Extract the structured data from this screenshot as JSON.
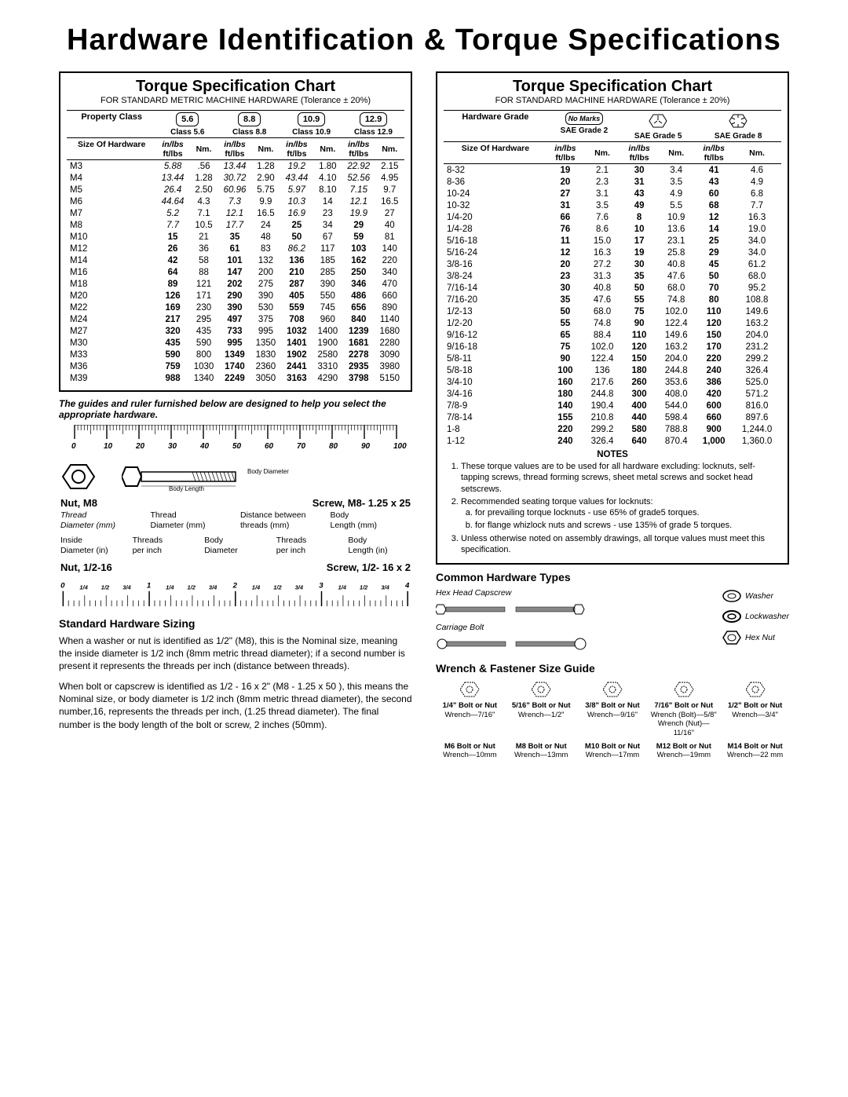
{
  "page_title": "Hardware Identification  &  Torque Specifications",
  "metric_chart": {
    "title": "Torque Specification Chart",
    "subtitle": "FOR STANDARD METRIC MACHINE HARDWARE (Tolerance ± 20%)",
    "prop_label": "Property Class",
    "classes": [
      "5.6",
      "8.8",
      "10.9",
      "12.9"
    ],
    "class_labels": [
      "Class 5.6",
      "Class 8.8",
      "Class 10.9",
      "Class 12.9"
    ],
    "size_label": "Size Of Hardware",
    "unit_top": "in/lbs",
    "unit_bot": "ft/lbs",
    "nm_label": "Nm.",
    "rows": [
      {
        "s": "M3",
        "v": [
          "5.88",
          ".56",
          "13.44",
          "1.28",
          "19.2",
          "1.80",
          "22.92",
          "2.15"
        ]
      },
      {
        "s": "M4",
        "v": [
          "13.44",
          "1.28",
          "30.72",
          "2.90",
          "43.44",
          "4.10",
          "52.56",
          "4.95"
        ]
      },
      {
        "s": "M5",
        "v": [
          "26.4",
          "2.50",
          "60.96",
          "5.75",
          "5.97",
          "8.10",
          "7.15",
          "9.7"
        ]
      },
      {
        "s": "M6",
        "v": [
          "44.64",
          "4.3",
          "7.3",
          "9.9",
          "10.3",
          "14",
          "12.1",
          "16.5"
        ]
      },
      {
        "s": "M7",
        "v": [
          "5.2",
          "7.1",
          "12.1",
          "16.5",
          "16.9",
          "23",
          "19.9",
          "27"
        ]
      },
      {
        "s": "M8",
        "v": [
          "7.7",
          "10.5",
          "17.7",
          "24",
          "25",
          "34",
          "29",
          "40"
        ]
      },
      {
        "s": "M10",
        "v": [
          "15",
          "21",
          "35",
          "48",
          "50",
          "67",
          "59",
          "81"
        ]
      },
      {
        "s": "M12",
        "v": [
          "26",
          "36",
          "61",
          "83",
          "86.2",
          "117",
          "103",
          "140"
        ]
      },
      {
        "s": "M14",
        "v": [
          "42",
          "58",
          "101",
          "132",
          "136",
          "185",
          "162",
          "220"
        ]
      },
      {
        "s": "M16",
        "v": [
          "64",
          "88",
          "147",
          "200",
          "210",
          "285",
          "250",
          "340"
        ]
      },
      {
        "s": "M18",
        "v": [
          "89",
          "121",
          "202",
          "275",
          "287",
          "390",
          "346",
          "470"
        ]
      },
      {
        "s": "M20",
        "v": [
          "126",
          "171",
          "290",
          "390",
          "405",
          "550",
          "486",
          "660"
        ]
      },
      {
        "s": "M22",
        "v": [
          "169",
          "230",
          "390",
          "530",
          "559",
          "745",
          "656",
          "890"
        ]
      },
      {
        "s": "M24",
        "v": [
          "217",
          "295",
          "497",
          "375",
          "708",
          "960",
          "840",
          "1140"
        ]
      },
      {
        "s": "M27",
        "v": [
          "320",
          "435",
          "733",
          "995",
          "1032",
          "1400",
          "1239",
          "1680"
        ]
      },
      {
        "s": "M30",
        "v": [
          "435",
          "590",
          "995",
          "1350",
          "1401",
          "1900",
          "1681",
          "2280"
        ]
      },
      {
        "s": "M33",
        "v": [
          "590",
          "800",
          "1349",
          "1830",
          "1902",
          "2580",
          "2278",
          "3090"
        ]
      },
      {
        "s": "M36",
        "v": [
          "759",
          "1030",
          "1740",
          "2360",
          "2441",
          "3310",
          "2935",
          "3980"
        ]
      },
      {
        "s": "M39",
        "v": [
          "988",
          "1340",
          "2249",
          "3050",
          "3163",
          "4290",
          "3798",
          "5150"
        ]
      }
    ]
  },
  "sae_chart": {
    "title": "Torque Specification Chart",
    "subtitle": "FOR STANDARD MACHINE HARDWARE (Tolerance ± 20%)",
    "prop_label": "Hardware Grade",
    "nomark": "No Marks",
    "class_labels": [
      "SAE Grade 2",
      "SAE Grade 5",
      "SAE Grade 8"
    ],
    "rows": [
      {
        "s": "8-32",
        "v": [
          "19",
          "2.1",
          "30",
          "3.4",
          "41",
          "4.6"
        ]
      },
      {
        "s": "8-36",
        "v": [
          "20",
          "2.3",
          "31",
          "3.5",
          "43",
          "4.9"
        ]
      },
      {
        "s": "10-24",
        "v": [
          "27",
          "3.1",
          "43",
          "4.9",
          "60",
          "6.8"
        ]
      },
      {
        "s": "10-32",
        "v": [
          "31",
          "3.5",
          "49",
          "5.5",
          "68",
          "7.7"
        ]
      },
      {
        "s": "1/4-20",
        "v": [
          "66",
          "7.6",
          "8",
          "10.9",
          "12",
          "16.3"
        ]
      },
      {
        "s": "1/4-28",
        "v": [
          "76",
          "8.6",
          "10",
          "13.6",
          "14",
          "19.0"
        ]
      },
      {
        "s": "5/16-18",
        "v": [
          "11",
          "15.0",
          "17",
          "23.1",
          "25",
          "34.0"
        ]
      },
      {
        "s": "5/16-24",
        "v": [
          "12",
          "16.3",
          "19",
          "25.8",
          "29",
          "34.0"
        ]
      },
      {
        "s": "3/8-16",
        "v": [
          "20",
          "27.2",
          "30",
          "40.8",
          "45",
          "61.2"
        ]
      },
      {
        "s": "3/8-24",
        "v": [
          "23",
          "31.3",
          "35",
          "47.6",
          "50",
          "68.0"
        ]
      },
      {
        "s": "7/16-14",
        "v": [
          "30",
          "40.8",
          "50",
          "68.0",
          "70",
          "95.2"
        ]
      },
      {
        "s": "7/16-20",
        "v": [
          "35",
          "47.6",
          "55",
          "74.8",
          "80",
          "108.8"
        ]
      },
      {
        "s": "1/2-13",
        "v": [
          "50",
          "68.0",
          "75",
          "102.0",
          "110",
          "149.6"
        ]
      },
      {
        "s": "1/2-20",
        "v": [
          "55",
          "74.8",
          "90",
          "122.4",
          "120",
          "163.2"
        ]
      },
      {
        "s": "9/16-12",
        "v": [
          "65",
          "88.4",
          "110",
          "149.6",
          "150",
          "204.0"
        ]
      },
      {
        "s": "9/16-18",
        "v": [
          "75",
          "102.0",
          "120",
          "163.2",
          "170",
          "231.2"
        ]
      },
      {
        "s": "5/8-11",
        "v": [
          "90",
          "122.4",
          "150",
          "204.0",
          "220",
          "299.2"
        ]
      },
      {
        "s": "5/8-18",
        "v": [
          "100",
          "136",
          "180",
          "244.8",
          "240",
          "326.4"
        ]
      },
      {
        "s": "3/4-10",
        "v": [
          "160",
          "217.6",
          "260",
          "353.6",
          "386",
          "525.0"
        ]
      },
      {
        "s": "3/4-16",
        "v": [
          "180",
          "244.8",
          "300",
          "408.0",
          "420",
          "571.2"
        ]
      },
      {
        "s": "7/8-9",
        "v": [
          "140",
          "190.4",
          "400",
          "544.0",
          "600",
          "816.0"
        ]
      },
      {
        "s": "7/8-14",
        "v": [
          "155",
          "210.8",
          "440",
          "598.4",
          "660",
          "897.6"
        ]
      },
      {
        "s": "1-8",
        "v": [
          "220",
          "299.2",
          "580",
          "788.8",
          "900",
          "1,244.0"
        ]
      },
      {
        "s": "1-12",
        "v": [
          "240",
          "326.4",
          "640",
          "870.4",
          "1,000",
          "1,360.0"
        ]
      }
    ]
  },
  "guide_note": "The guides and ruler furnished below are designed to help you select the appropriate hardware.",
  "ruler_mm": {
    "ticks": [
      0,
      10,
      20,
      30,
      40,
      50,
      60,
      70,
      80,
      90,
      100
    ]
  },
  "ruler_in": {
    "majors": [
      0,
      1,
      2,
      3,
      4
    ],
    "minors": [
      "1/4",
      "1/2",
      "3/4"
    ]
  },
  "nut_metric": "Nut, M8",
  "screw_metric": "Screw, M8- 1.25 x 25",
  "nut_imperial": "Nut, 1/2-16",
  "screw_imperial": "Screw, 1/2- 16 x 2",
  "terms_metric_nut": [
    "Thread",
    "Diameter (mm)"
  ],
  "terms_metric_screw": [
    "Thread",
    "Diameter (mm)",
    "Distance between",
    "threads (mm)",
    "Body",
    "Length (mm)"
  ],
  "terms_imp_nut": [
    "Inside",
    "Diameter (in)",
    "Threads",
    "per inch"
  ],
  "terms_imp_screw": [
    "Body",
    "Diameter",
    "Threads",
    "per inch",
    "Body",
    "Length (in)"
  ],
  "bolt_diag": {
    "body_dia": "Body Diameter",
    "body_len": "Body Length"
  },
  "std_sizing_title": "Standard Hardware Sizing",
  "std_p1": "When a washer or nut is identified as 1/2\" (M8), this is the Nominal size, meaning the inside diameter is 1/2 inch (8mm metric thread diameter); if a second number is present it represents the threads per inch (distance between threads).",
  "std_p2": "When bolt or capscrew is identified as 1/2 - 16 x 2\" (M8 - 1.25 x 50 ), this means the Nominal size, or body diameter is 1/2 inch (8mm metric thread diameter), the second number,16, represents the threads per inch, (1.25 thread diameter). The final number is the body length of the bolt or screw, 2 inches (50mm).",
  "notes_title": "NOTES",
  "notes": [
    "These torque values are to be used for all hardware excluding: locknuts, self-tapping screws, thread forming screws, sheet metal screws and socket head setscrews.",
    "Recommended seating torque values for locknuts:",
    "Unless otherwise noted on assembly drawings, all torque values must meet this specification."
  ],
  "notes_sub": [
    "for prevailing torque locknuts - use 65% of grade5 torques.",
    "for flange whizlock nuts and screws - use 135% of grade 5 torques."
  ],
  "hw_types_title": "Common Hardware Types",
  "hw": {
    "hex": "Hex Head Capscrew",
    "carriage": "Carriage Bolt",
    "washer": "Washer",
    "lock": "Lockwasher",
    "nut": "Hex Nut"
  },
  "wrench_title": "Wrench & Fastener Size Guide",
  "wrench": [
    {
      "b": "1/4\" Bolt or Nut",
      "w": "Wrench—7/16\""
    },
    {
      "b": "5/16\" Bolt or Nut",
      "w": "Wrench—1/2\""
    },
    {
      "b": "3/8\" Bolt or Nut",
      "w": "Wrench—9/16\""
    },
    {
      "b": "7/16\" Bolt or Nut",
      "w": "Wrench (Bolt)—5/8\"\nWrench (Nut)—11/16\""
    },
    {
      "b": "1/2\" Bolt or Nut",
      "w": "Wrench—3/4\""
    },
    {
      "b": "M6 Bolt or Nut",
      "w": "Wrench—10mm"
    },
    {
      "b": "M8 Bolt or Nut",
      "w": "Wrench—13mm"
    },
    {
      "b": "M10 Bolt or Nut",
      "w": "Wrench—17mm"
    },
    {
      "b": "M12 Bolt or Nut",
      "w": "Wrench—19mm"
    },
    {
      "b": "M14 Bolt or Nut",
      "w": "Wrench—22 mm"
    }
  ],
  "colors": {
    "text": "#000000",
    "bg": "#ffffff",
    "rule": "#000000"
  }
}
